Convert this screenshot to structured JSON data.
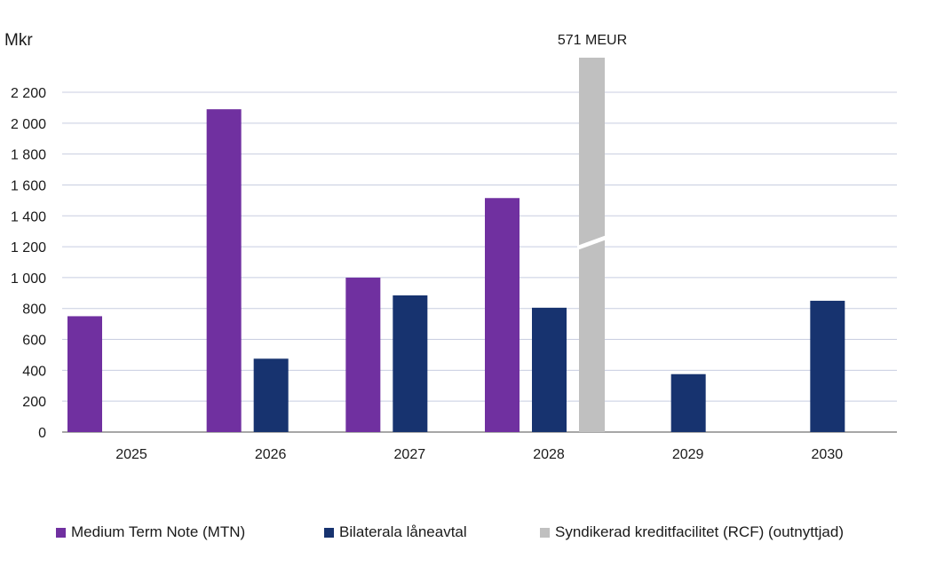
{
  "chart_data": {
    "type": "bar",
    "ylabel": "Mkr",
    "ylim": [
      0,
      2200
    ],
    "yticks": [
      0,
      200,
      400,
      600,
      800,
      1000,
      1200,
      1400,
      1600,
      1800,
      2000,
      2200
    ],
    "ytick_labels": [
      "0",
      "200",
      "400",
      "600",
      "800",
      "1 000",
      "1 200",
      "1 400",
      "1 600",
      "1 800",
      "2 000",
      "2 200"
    ],
    "categories": [
      "2025",
      "2026",
      "2027",
      "2028",
      "2029",
      "2030"
    ],
    "grid": true,
    "series": [
      {
        "name": "Medium Term Note (MTN)",
        "color": "#7030a0",
        "values": [
          750,
          2090,
          1000,
          1515,
          null,
          null
        ]
      },
      {
        "name": "Bilaterala låneavtal",
        "color": "#17336f",
        "values": [
          null,
          475,
          885,
          805,
          375,
          850
        ]
      },
      {
        "name": "Syndikerad kreditfacilitet (RCF) (outnyttjad)",
        "color": "#c0c0c0",
        "values": [
          null,
          null,
          null,
          571,
          null,
          null
        ],
        "unit": "MEUR",
        "broken_axis": true
      }
    ],
    "annotations": [
      {
        "category": "2028",
        "series": "Syndikerad kreditfacilitet (RCF) (outnyttjad)",
        "text": "571 MEUR"
      }
    ],
    "legend_position": "bottom"
  }
}
